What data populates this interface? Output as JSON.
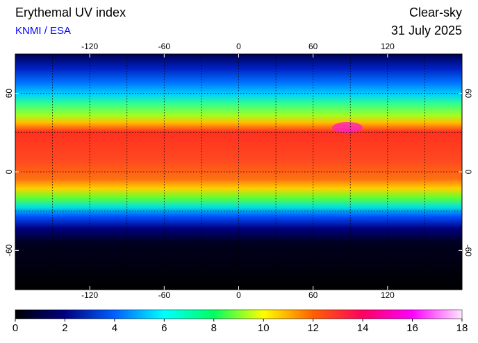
{
  "header": {
    "title": "Erythemal UV index",
    "source": "KNMI / ESA",
    "mode": "Clear-sky",
    "date": "31 July 2025"
  },
  "map": {
    "lonlim": [
      -180,
      180
    ],
    "latlim": [
      -90,
      90
    ],
    "lon_ticks": [
      -120,
      -60,
      0,
      60,
      120
    ],
    "lat_ticks": [
      60,
      0,
      -60
    ]
  },
  "colorbar": {
    "lim": [
      0,
      18
    ],
    "ticks": [
      0,
      2,
      4,
      6,
      8,
      10,
      12,
      14,
      16,
      18
    ],
    "colors": [
      "#000000",
      "#000080",
      "#0060ff",
      "#00ffff",
      "#00ff60",
      "#ffff00",
      "#ff6000",
      "#ff0060",
      "#ff00ff",
      "#ffe8ff"
    ]
  }
}
